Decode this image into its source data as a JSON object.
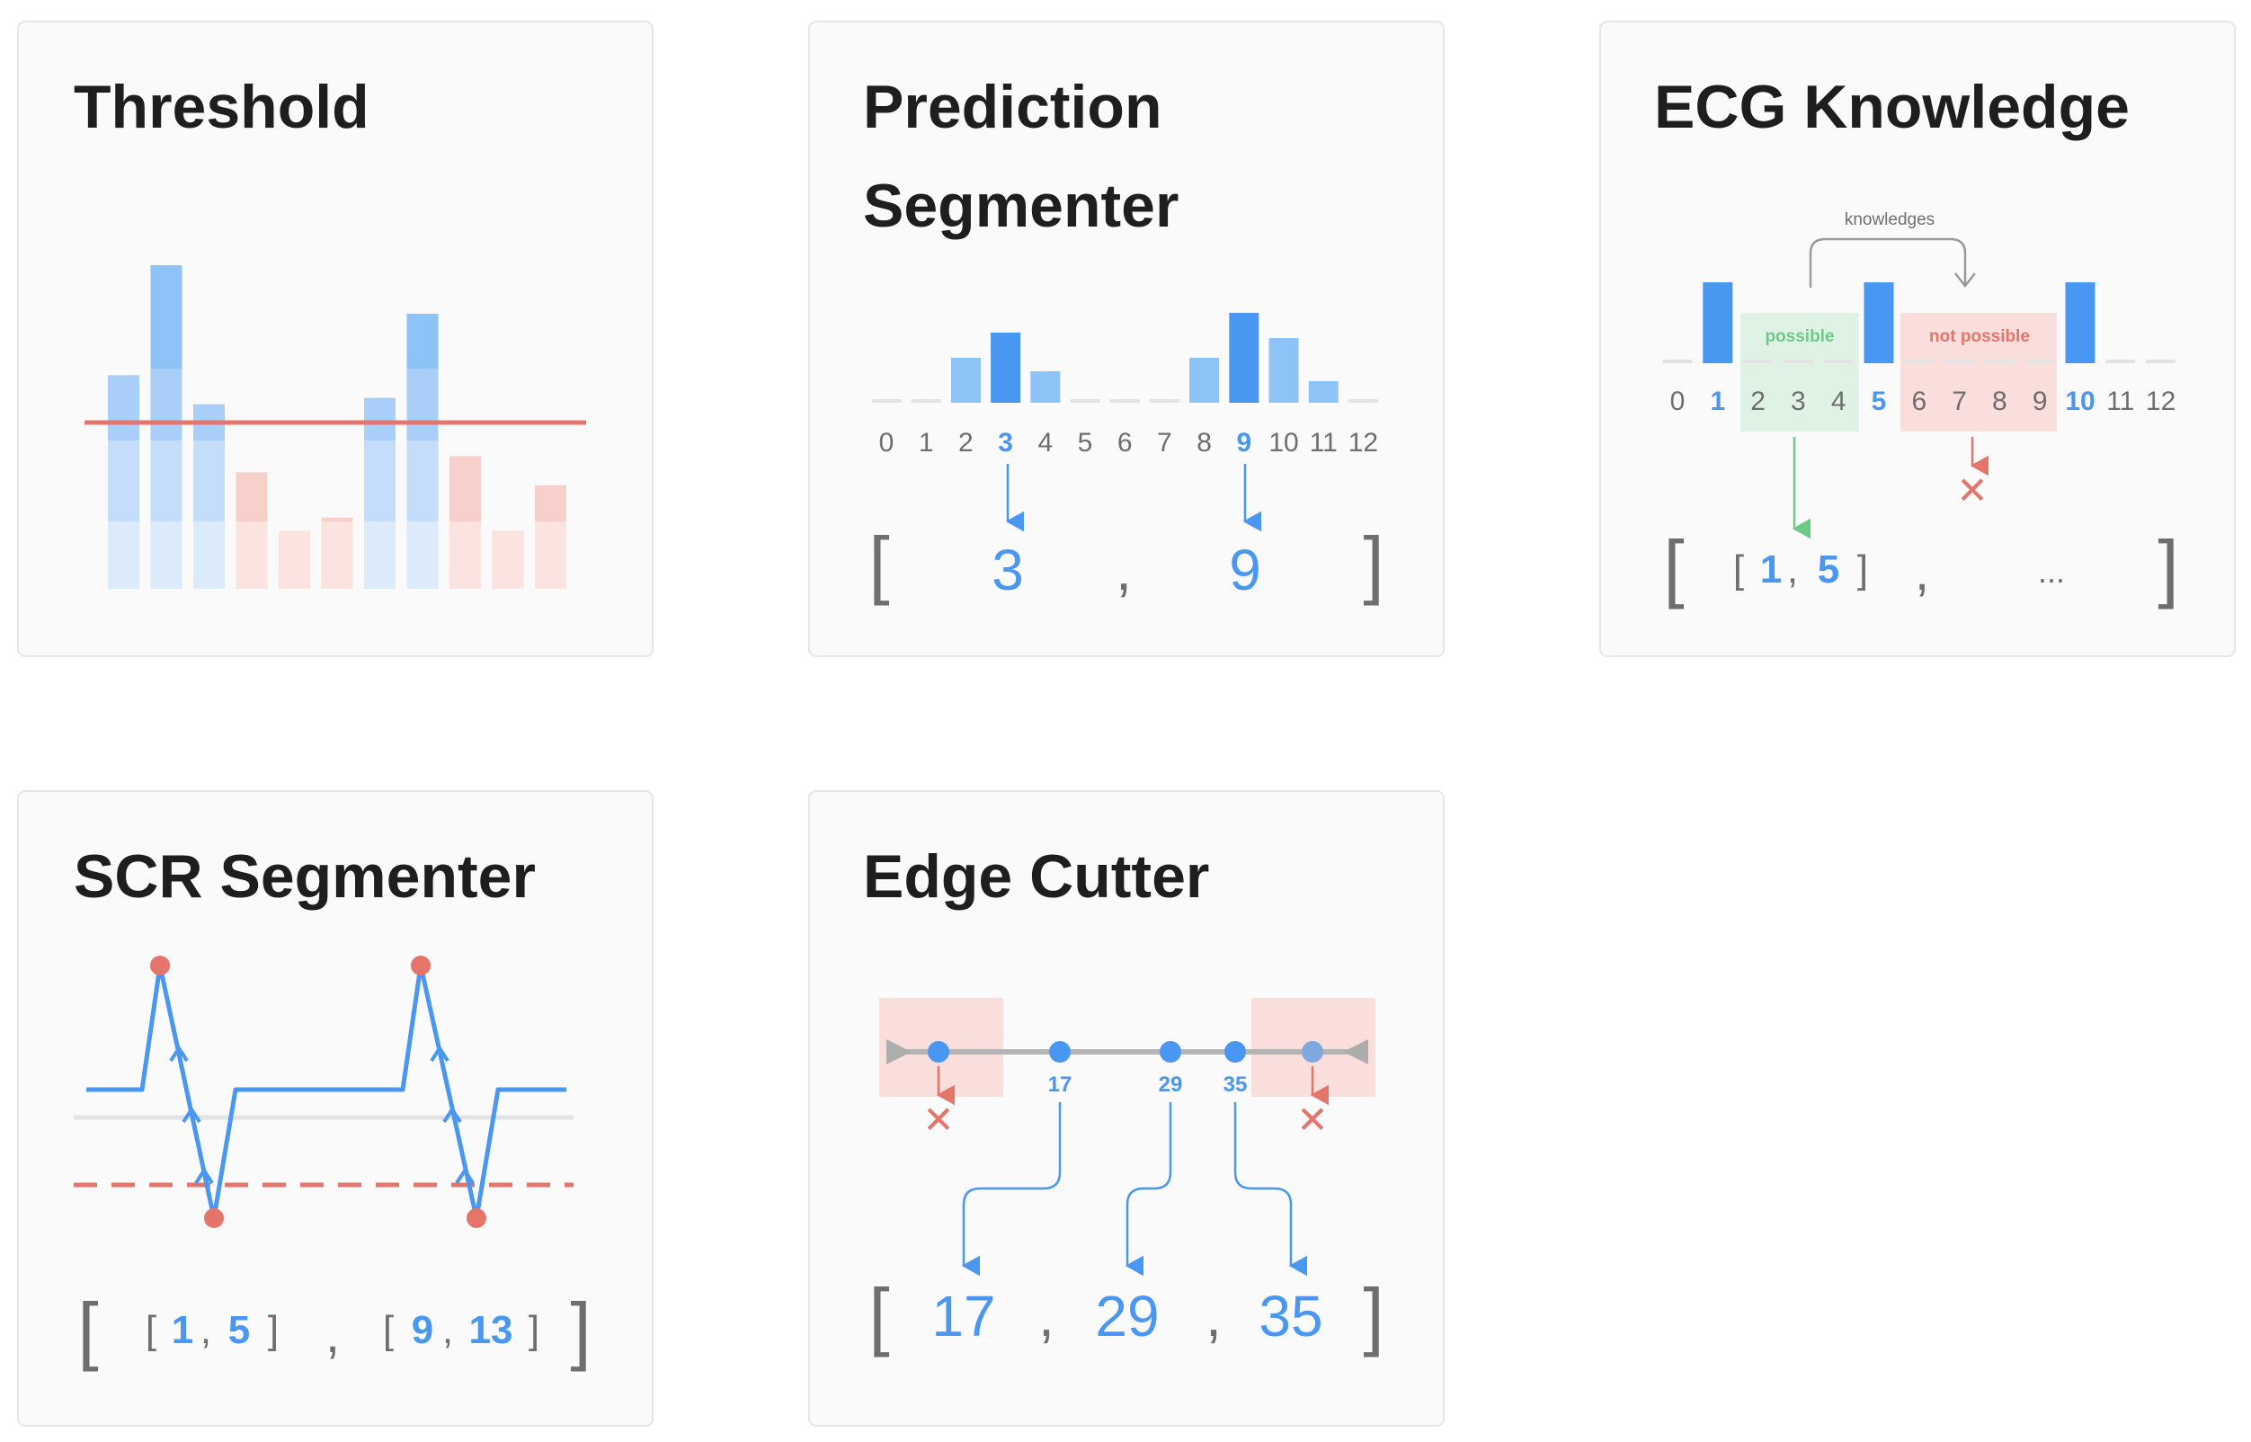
{
  "cards": {
    "threshold": {
      "title": "Threshold",
      "bar_heights": [
        0.66,
        1.0,
        0.57,
        0.36,
        0.18,
        0.22,
        0.59,
        0.85,
        0.41,
        0.18,
        0.32
      ],
      "above_threshold": [
        true,
        true,
        true,
        false,
        false,
        false,
        true,
        true,
        false,
        false,
        false
      ]
    },
    "prediction_segmenter": {
      "title_line1": "Prediction",
      "title_line2": "Segmenter",
      "axis_labels": [
        "0",
        "1",
        "2",
        "3",
        "4",
        "5",
        "6",
        "7",
        "8",
        "9",
        "10",
        "11",
        "12"
      ],
      "bar_heights": [
        0,
        0,
        0.5,
        0.78,
        0.35,
        0,
        0,
        0,
        0.5,
        1.0,
        0.72,
        0.24,
        0
      ],
      "highlighted": [
        "3",
        "9"
      ],
      "output": {
        "open": "[",
        "v1": "3",
        "sep": ",",
        "v2": "9",
        "close": "]"
      }
    },
    "ecg_knowledge": {
      "title": "ECG Knowledge",
      "annotation": "knowledges",
      "possible_label": "possible",
      "not_possible_label": "not possible",
      "axis_labels": [
        "0",
        "1",
        "2",
        "3",
        "4",
        "5",
        "6",
        "7",
        "8",
        "9",
        "10",
        "11",
        "12"
      ],
      "highlighted": [
        "1",
        "5",
        "10"
      ],
      "rejected_mark": "✕",
      "output": {
        "open": "[",
        "inner_open": "[",
        "v1": "1",
        "inner_sep": ",",
        "v2": "5",
        "inner_close": "]",
        "sep": ",",
        "ellipsis": "...",
        "close": "]"
      }
    },
    "scr_segmenter": {
      "title": "SCR Segmenter",
      "output": {
        "open": "[",
        "seg1_open": "[",
        "seg1_v1": "1",
        "seg1_sep": ",",
        "seg1_v2": "5",
        "seg1_close": "]",
        "sep": ",",
        "seg2_open": "[",
        "seg2_v1": "9",
        "seg2_sep": ",",
        "seg2_v2": "13",
        "seg2_close": "]",
        "close": "]"
      }
    },
    "edge_cutter": {
      "title": "Edge Cutter",
      "point_labels": [
        "17",
        "29",
        "35"
      ],
      "rejected_mark": "✕",
      "output": {
        "open": "[",
        "v1": "17",
        "sep1": ",",
        "v2": "29",
        "sep2": ",",
        "v3": "35",
        "close": "]"
      }
    }
  },
  "colors": {
    "blue": "#4A97F2",
    "light_blue": "#8EC3F7",
    "red": "#E5756B",
    "pink": "#F7CFCB",
    "green": "#6BCB86",
    "gray": "#8A8A8A",
    "text": "#1E1E1E"
  }
}
